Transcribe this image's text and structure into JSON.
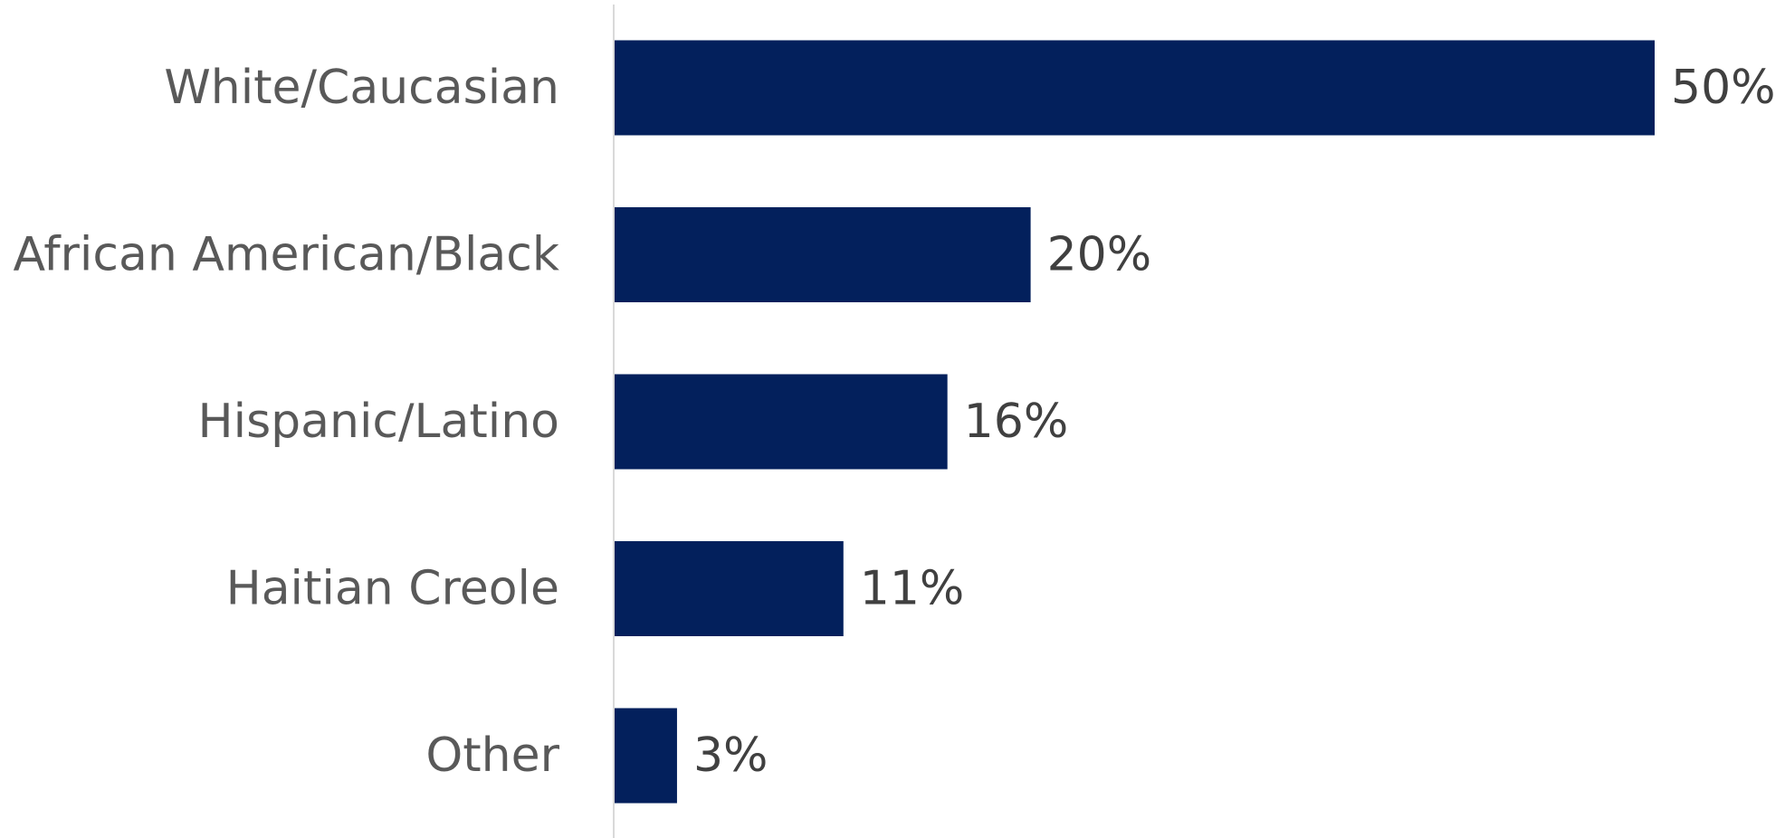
{
  "chart_data": {
    "type": "bar",
    "orientation": "horizontal",
    "title": "",
    "xlabel": "",
    "ylabel": "",
    "categories": [
      "White/Caucasian",
      "African American/Black",
      "Hispanic/Latino",
      "Haitian Creole",
      "Other"
    ],
    "values": [
      50,
      20,
      16,
      11,
      3
    ],
    "value_labels": [
      "50%",
      "20%",
      "16%",
      "11%",
      "3%"
    ],
    "unit": "%",
    "xlim": [
      0,
      50
    ],
    "grid": false,
    "legend": "none",
    "colors": {
      "bar": "#03205C",
      "axis": "#D9D9D9",
      "category_text": "#595959",
      "value_text": "#404040"
    }
  }
}
